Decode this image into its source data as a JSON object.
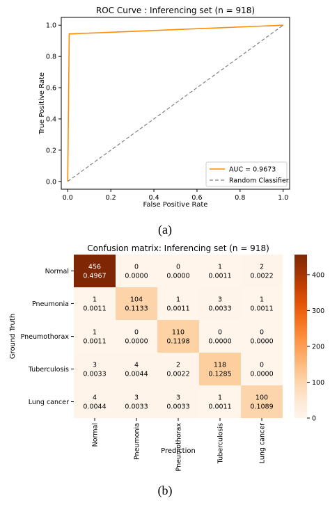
{
  "panel_a": {
    "caption": "(a)",
    "chart_data": {
      "type": "line",
      "title": "ROC Curve : Inferencing set (n = 918)",
      "xlabel": "False Positive Rate",
      "ylabel": "True Positive Rate",
      "xlim": [
        -0.03,
        1.03
      ],
      "ylim": [
        -0.05,
        1.05
      ],
      "xticks": [
        0.0,
        0.2,
        0.4,
        0.6,
        0.8,
        1.0
      ],
      "yticks": [
        0.0,
        0.2,
        0.4,
        0.6,
        0.8,
        1.0
      ],
      "tick_labels_x": [
        "0.0",
        "0.2",
        "0.4",
        "0.6",
        "0.8",
        "1.0"
      ],
      "tick_labels_y": [
        "0.0",
        "0.2",
        "0.4",
        "0.6",
        "0.8",
        "1.0"
      ],
      "grid": false,
      "legend_position": "lower-right",
      "series": [
        {
          "name": "AUC = 0.9673",
          "color": "#ff8c00",
          "style": "solid",
          "x": [
            0.0,
            0.007,
            1.0
          ],
          "y": [
            0.0,
            0.944,
            1.0
          ]
        },
        {
          "name": "Random Classifier",
          "color": "#808080",
          "style": "dashed",
          "x": [
            0.0,
            1.0
          ],
          "y": [
            0.0,
            1.0
          ]
        }
      ]
    }
  },
  "panel_b": {
    "caption": "(b)",
    "chart_data": {
      "type": "heatmap",
      "title": "Confusion matrix: Inferencing set (n = 918)",
      "xlabel": "Prediction",
      "ylabel": "Ground Truth",
      "x_categories": [
        "Normal",
        "Pneumonia",
        "Pneumothorax",
        "Tuberculosis",
        "Lung cancer"
      ],
      "y_categories": [
        "Normal",
        "Pneumonia",
        "Pneumothorax",
        "Tuberculosis",
        "Lung cancer"
      ],
      "counts": [
        [
          456,
          0,
          0,
          1,
          2
        ],
        [
          1,
          104,
          1,
          3,
          1
        ],
        [
          1,
          0,
          110,
          0,
          0
        ],
        [
          3,
          4,
          2,
          118,
          0
        ],
        [
          4,
          3,
          3,
          1,
          100
        ]
      ],
      "fractions": [
        [
          "0.4967",
          "0.0000",
          "0.0000",
          "0.0011",
          "0.0022"
        ],
        [
          "0.0011",
          "0.1133",
          "0.0011",
          "0.0033",
          "0.0011"
        ],
        [
          "0.0011",
          "0.0000",
          "0.1198",
          "0.0000",
          "0.0000"
        ],
        [
          "0.0033",
          "0.0044",
          "0.0022",
          "0.1285",
          "0.0000"
        ],
        [
          "0.0044",
          "0.0033",
          "0.0033",
          "0.0011",
          "0.1089"
        ]
      ],
      "colorbar": {
        "min": 0,
        "max": 456,
        "ticks": [
          0,
          100,
          200,
          300,
          400
        ],
        "colormap": "Oranges"
      }
    }
  }
}
